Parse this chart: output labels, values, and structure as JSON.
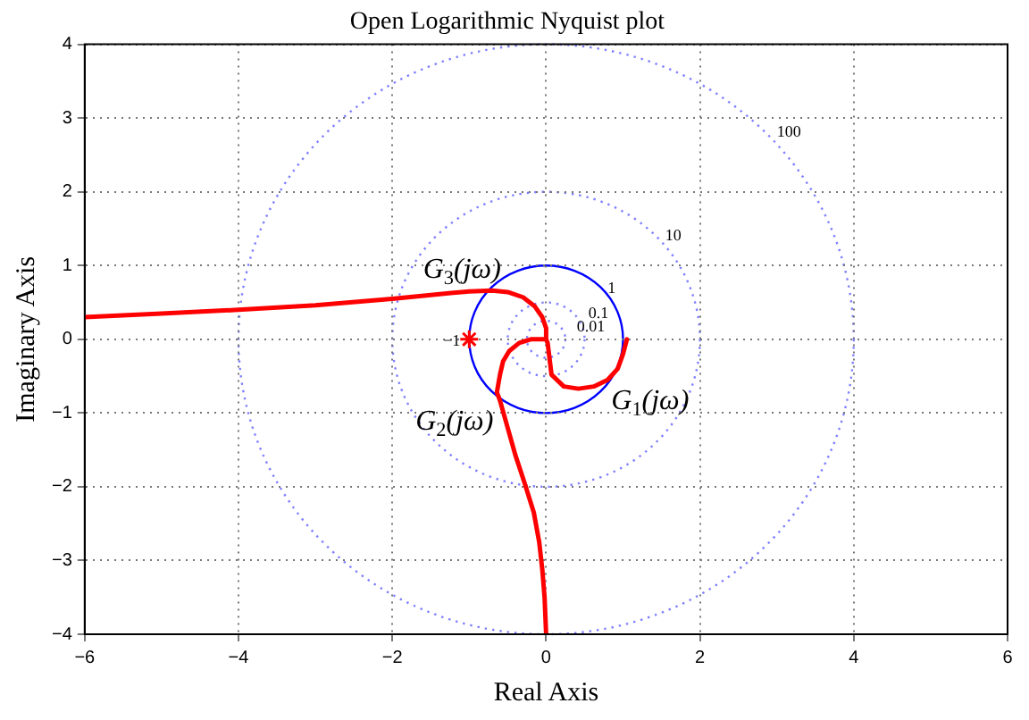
{
  "chart_data": {
    "type": "line",
    "title": "Open Logarithmic Nyquist plot",
    "xlabel": "Real Axis",
    "ylabel": "Imaginary Axis",
    "xlim": [
      -6,
      6
    ],
    "xticks": [
      -6,
      -4,
      -2,
      0,
      2,
      4,
      6
    ],
    "ylim": [
      -4,
      4
    ],
    "yticks": [
      -4,
      -3,
      -2,
      -1,
      0,
      1,
      2,
      3,
      4
    ],
    "grid": true,
    "legend": false,
    "series": [
      {
        "name": "G$_{3}$(jω)",
        "color": "#ff0000",
        "line_style": "solid",
        "x": [
          -6,
          -5,
          -4,
          -3,
          -2,
          -1.5,
          -1,
          -0.7,
          -0.5,
          -0.3,
          -0.15,
          -0.05,
          0,
          0
        ],
        "values": [
          0.3,
          0.35,
          0.4,
          0.46,
          0.55,
          0.6,
          0.65,
          0.66,
          0.64,
          0.57,
          0.45,
          0.3,
          0.15,
          0.02
        ]
      },
      {
        "name": "G$_{2}$(jω)",
        "color": "#ff0000",
        "line_style": "solid",
        "x": [
          0,
          -0.2,
          -0.35,
          -0.48,
          -0.56,
          -0.6,
          -0.64,
          -0.6,
          -0.5,
          -0.4,
          -0.28,
          -0.16,
          -0.09,
          -0.05,
          -0.02,
          0
        ],
        "values": [
          0,
          0,
          -0.05,
          -0.16,
          -0.3,
          -0.48,
          -0.72,
          -0.83,
          -1.2,
          -1.57,
          -1.95,
          -2.35,
          -2.75,
          -3.12,
          -3.5,
          -4
        ]
      },
      {
        "name": "G$_{1}$(jω)",
        "color": "#ff0000",
        "line_style": "solid",
        "x": [
          0,
          0.02,
          0.07,
          0.23,
          0.42,
          0.62,
          0.8,
          0.93,
          1,
          1.05
        ],
        "values": [
          0,
          -0.05,
          -0.48,
          -0.64,
          -0.67,
          -0.64,
          -0.55,
          -0.4,
          -0.2,
          0
        ]
      },
      {
        "name": "−1",
        "type": "scatter",
        "color": "#ff0000",
        "marker": "cross",
        "x": [
          -1
        ],
        "values": [
          0
        ]
      }
    ],
    "annotations": [
      "100",
      "10",
      "1",
      "0.1",
      "0.01"
    ]
  }
}
